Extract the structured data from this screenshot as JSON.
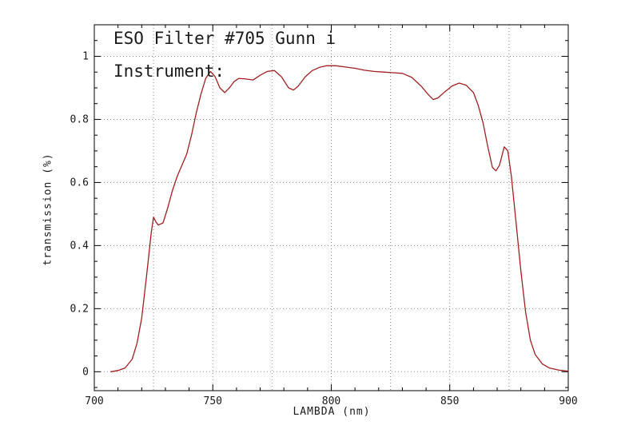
{
  "chart_data": {
    "type": "line",
    "title": "ESO Filter #705 Gunn i",
    "subtitle": "Instrument:",
    "xlabel": "LAMBDA (nm)",
    "ylabel": "transmission (%)",
    "xlim": [
      700,
      900
    ],
    "ylim": [
      -0.06,
      1.1
    ],
    "xticks": [
      700,
      750,
      800,
      850,
      900
    ],
    "xtick_labels": [
      "700",
      "750",
      "800",
      "850",
      "900"
    ],
    "x_minor_step": 10,
    "yticks": [
      0,
      0.2,
      0.4,
      0.6,
      0.8,
      1
    ],
    "ytick_labels": [
      "0",
      "0.2",
      "0.4",
      "0.6",
      "0.8",
      "1"
    ],
    "y_minor_step": 0.05,
    "x_gridlines": [
      725,
      750,
      775,
      800,
      825,
      850,
      875
    ],
    "y_gridlines": [
      0,
      0.2,
      0.4,
      0.6,
      0.8,
      1
    ],
    "grid_style": "dotted",
    "line_color": "#a02020",
    "axis_color": "#000000",
    "legend": "none",
    "series": [
      {
        "name": "transmission",
        "points": [
          [
            707,
            0.0
          ],
          [
            710,
            0.004
          ],
          [
            713,
            0.012
          ],
          [
            716,
            0.04
          ],
          [
            718,
            0.09
          ],
          [
            720,
            0.17
          ],
          [
            722,
            0.3
          ],
          [
            724,
            0.44
          ],
          [
            725,
            0.49
          ],
          [
            726,
            0.475
          ],
          [
            727,
            0.465
          ],
          [
            729,
            0.472
          ],
          [
            731,
            0.52
          ],
          [
            733,
            0.575
          ],
          [
            735,
            0.62
          ],
          [
            737,
            0.655
          ],
          [
            739,
            0.69
          ],
          [
            741,
            0.75
          ],
          [
            743,
            0.82
          ],
          [
            745,
            0.88
          ],
          [
            747,
            0.93
          ],
          [
            749,
            0.952
          ],
          [
            751,
            0.935
          ],
          [
            753,
            0.9
          ],
          [
            755,
            0.885
          ],
          [
            757,
            0.9
          ],
          [
            759,
            0.92
          ],
          [
            761,
            0.93
          ],
          [
            764,
            0.928
          ],
          [
            767,
            0.925
          ],
          [
            770,
            0.94
          ],
          [
            773,
            0.952
          ],
          [
            776,
            0.955
          ],
          [
            779,
            0.935
          ],
          [
            782,
            0.9
          ],
          [
            784,
            0.893
          ],
          [
            786,
            0.905
          ],
          [
            789,
            0.935
          ],
          [
            792,
            0.955
          ],
          [
            795,
            0.965
          ],
          [
            798,
            0.97
          ],
          [
            802,
            0.97
          ],
          [
            806,
            0.966
          ],
          [
            810,
            0.962
          ],
          [
            814,
            0.956
          ],
          [
            818,
            0.952
          ],
          [
            822,
            0.95
          ],
          [
            826,
            0.948
          ],
          [
            830,
            0.946
          ],
          [
            834,
            0.933
          ],
          [
            838,
            0.905
          ],
          [
            841,
            0.878
          ],
          [
            843,
            0.863
          ],
          [
            845,
            0.868
          ],
          [
            848,
            0.888
          ],
          [
            851,
            0.906
          ],
          [
            854,
            0.915
          ],
          [
            857,
            0.908
          ],
          [
            860,
            0.885
          ],
          [
            862,
            0.845
          ],
          [
            864,
            0.79
          ],
          [
            866,
            0.715
          ],
          [
            868,
            0.648
          ],
          [
            869.5,
            0.637
          ],
          [
            871,
            0.655
          ],
          [
            873,
            0.713
          ],
          [
            874.5,
            0.7
          ],
          [
            876,
            0.62
          ],
          [
            878,
            0.47
          ],
          [
            880,
            0.32
          ],
          [
            882,
            0.19
          ],
          [
            884,
            0.1
          ],
          [
            886,
            0.055
          ],
          [
            889,
            0.025
          ],
          [
            892,
            0.012
          ],
          [
            896,
            0.005
          ],
          [
            900,
            0.002
          ]
        ]
      }
    ]
  }
}
